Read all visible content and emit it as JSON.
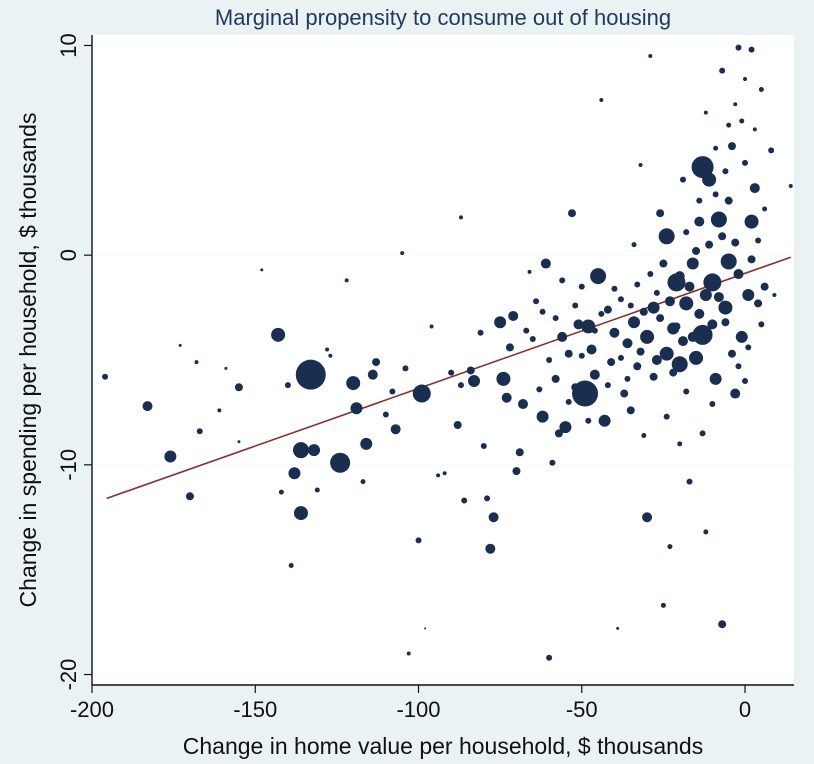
{
  "chart_data": {
    "type": "scatter",
    "title": "Marginal propensity to consume out of housing",
    "xlabel": "Change in home value per household, $ thousands",
    "ylabel": "Change in spending per household, $ thousands",
    "xlim": [
      -200,
      15
    ],
    "ylim": [
      -20.5,
      10.5
    ],
    "xticks": [
      -200,
      -150,
      -100,
      -50,
      0
    ],
    "yticks": [
      -20,
      -10,
      0,
      10
    ],
    "grid": true,
    "legend": "none",
    "colors": {
      "points": "#1a2f4f",
      "fit_line": "#8a2f2f",
      "background": "#eaf2f3",
      "plot_area": "#ffffff"
    },
    "fit_line": {
      "x": [
        -195.5,
        14
      ],
      "y": [
        -11.6,
        -0.1
      ]
    },
    "points": [
      {
        "x": -196,
        "y": -5.8,
        "s": 3
      },
      {
        "x": -183,
        "y": -7.2,
        "s": 5
      },
      {
        "x": -176,
        "y": -9.6,
        "s": 6
      },
      {
        "x": -173,
        "y": -4.3,
        "s": 1.5
      },
      {
        "x": -170,
        "y": -11.5,
        "s": 4
      },
      {
        "x": -168,
        "y": -5.1,
        "s": 2
      },
      {
        "x": -167,
        "y": -8.4,
        "s": 3
      },
      {
        "x": -161,
        "y": -7.4,
        "s": 2
      },
      {
        "x": -159,
        "y": -5.4,
        "s": 1.5
      },
      {
        "x": -155,
        "y": -6.3,
        "s": 4
      },
      {
        "x": -155,
        "y": -8.9,
        "s": 1.5
      },
      {
        "x": -148,
        "y": -0.7,
        "s": 1.5
      },
      {
        "x": -143,
        "y": -3.8,
        "s": 7
      },
      {
        "x": -142,
        "y": -11.3,
        "s": 2.5
      },
      {
        "x": -140,
        "y": -6.2,
        "s": 3
      },
      {
        "x": -139,
        "y": -14.8,
        "s": 2.5
      },
      {
        "x": -138,
        "y": -10.4,
        "s": 6
      },
      {
        "x": -136,
        "y": -9.3,
        "s": 8
      },
      {
        "x": -136,
        "y": -12.3,
        "s": 7
      },
      {
        "x": -133,
        "y": -5.7,
        "s": 15
      },
      {
        "x": -132,
        "y": -9.3,
        "s": 6
      },
      {
        "x": -131,
        "y": -11.2,
        "s": 2.5
      },
      {
        "x": -128,
        "y": -4.5,
        "s": 2
      },
      {
        "x": -127,
        "y": -4.8,
        "s": 2
      },
      {
        "x": -124,
        "y": -9.9,
        "s": 10
      },
      {
        "x": -122,
        "y": -1.2,
        "s": 2
      },
      {
        "x": -120,
        "y": -6.1,
        "s": 7
      },
      {
        "x": -119,
        "y": -7.3,
        "s": 6
      },
      {
        "x": -117,
        "y": -10.8,
        "s": 2.5
      },
      {
        "x": -116,
        "y": -9.0,
        "s": 6
      },
      {
        "x": -114,
        "y": -5.7,
        "s": 5
      },
      {
        "x": -113,
        "y": -5.1,
        "s": 4
      },
      {
        "x": -110,
        "y": -7.6,
        "s": 3
      },
      {
        "x": -108,
        "y": -6.5,
        "s": 3
      },
      {
        "x": -107,
        "y": -8.3,
        "s": 5
      },
      {
        "x": -105,
        "y": 0.1,
        "s": 2
      },
      {
        "x": -104,
        "y": -5.4,
        "s": 3
      },
      {
        "x": -103,
        "y": -19.0,
        "s": 2
      },
      {
        "x": -100,
        "y": -13.6,
        "s": 3
      },
      {
        "x": -99,
        "y": -6.6,
        "s": 9
      },
      {
        "x": -98,
        "y": -17.8,
        "s": 1
      },
      {
        "x": -96,
        "y": -3.4,
        "s": 2
      },
      {
        "x": -94,
        "y": -10.5,
        "s": 2
      },
      {
        "x": -92,
        "y": -10.4,
        "s": 2
      },
      {
        "x": -90,
        "y": -5.6,
        "s": 3
      },
      {
        "x": -88,
        "y": -8.1,
        "s": 4
      },
      {
        "x": -87,
        "y": -6.2,
        "s": 3
      },
      {
        "x": -87,
        "y": 1.8,
        "s": 2
      },
      {
        "x": -86,
        "y": -11.7,
        "s": 3
      },
      {
        "x": -84,
        "y": -5.5,
        "s": 4
      },
      {
        "x": -83,
        "y": -6.0,
        "s": 6
      },
      {
        "x": -81,
        "y": -3.7,
        "s": 3
      },
      {
        "x": -80,
        "y": -9.1,
        "s": 3
      },
      {
        "x": -79,
        "y": -11.6,
        "s": 3
      },
      {
        "x": -78,
        "y": -14.0,
        "s": 5
      },
      {
        "x": -77,
        "y": -12.5,
        "s": 5
      },
      {
        "x": -75,
        "y": -3.2,
        "s": 6
      },
      {
        "x": -74,
        "y": -5.9,
        "s": 7
      },
      {
        "x": -73,
        "y": -6.8,
        "s": 5
      },
      {
        "x": -72,
        "y": -4.4,
        "s": 4
      },
      {
        "x": -71,
        "y": -2.9,
        "s": 5
      },
      {
        "x": -70,
        "y": -10.3,
        "s": 4
      },
      {
        "x": -69,
        "y": -9.4,
        "s": 4
      },
      {
        "x": -68,
        "y": -7.1,
        "s": 5
      },
      {
        "x": -67,
        "y": -3.6,
        "s": 3
      },
      {
        "x": -66,
        "y": -0.8,
        "s": 2
      },
      {
        "x": -64,
        "y": -2.2,
        "s": 3
      },
      {
        "x": -63,
        "y": -6.4,
        "s": 3
      },
      {
        "x": -62,
        "y": -7.7,
        "s": 6
      },
      {
        "x": -61,
        "y": -0.4,
        "s": 5
      },
      {
        "x": -60,
        "y": -19.2,
        "s": 3
      },
      {
        "x": -59,
        "y": -9.9,
        "s": 3
      },
      {
        "x": -58,
        "y": -5.9,
        "s": 4
      },
      {
        "x": -57,
        "y": -8.5,
        "s": 4
      },
      {
        "x": -56,
        "y": -3.9,
        "s": 5
      },
      {
        "x": -55,
        "y": -8.2,
        "s": 6
      },
      {
        "x": -54,
        "y": -4.7,
        "s": 4
      },
      {
        "x": -53,
        "y": 2.0,
        "s": 4
      },
      {
        "x": -52,
        "y": -6.3,
        "s": 4
      },
      {
        "x": -51,
        "y": -3.3,
        "s": 5
      },
      {
        "x": -50,
        "y": -1.5,
        "s": 3
      },
      {
        "x": -49,
        "y": -6.6,
        "s": 13
      },
      {
        "x": -48,
        "y": -3.4,
        "s": 7
      },
      {
        "x": -47,
        "y": -4.5,
        "s": 5
      },
      {
        "x": -46,
        "y": -5.7,
        "s": 5
      },
      {
        "x": -45,
        "y": -1.0,
        "s": 8
      },
      {
        "x": -44,
        "y": 7.4,
        "s": 2
      },
      {
        "x": -43,
        "y": -7.9,
        "s": 6
      },
      {
        "x": -42,
        "y": -2.6,
        "s": 4
      },
      {
        "x": -41,
        "y": -5.1,
        "s": 4
      },
      {
        "x": -40,
        "y": -3.7,
        "s": 5
      },
      {
        "x": -39,
        "y": -17.8,
        "s": 1.5
      },
      {
        "x": -38,
        "y": -2.1,
        "s": 3
      },
      {
        "x": -37,
        "y": -6.6,
        "s": 4
      },
      {
        "x": -36,
        "y": -4.2,
        "s": 5
      },
      {
        "x": -35,
        "y": -7.4,
        "s": 4
      },
      {
        "x": -34,
        "y": -3.2,
        "s": 6
      },
      {
        "x": -33,
        "y": -5.3,
        "s": 4
      },
      {
        "x": -32,
        "y": 4.3,
        "s": 2
      },
      {
        "x": -31,
        "y": -8.6,
        "s": 2.5
      },
      {
        "x": -30,
        "y": -12.5,
        "s": 5
      },
      {
        "x": -30,
        "y": -3.9,
        "s": 7
      },
      {
        "x": -29,
        "y": 9.5,
        "s": 2
      },
      {
        "x": -28,
        "y": -2.5,
        "s": 6
      },
      {
        "x": -27,
        "y": -5.0,
        "s": 5
      },
      {
        "x": -26,
        "y": 2.0,
        "s": 4
      },
      {
        "x": -25,
        "y": -16.7,
        "s": 2.5
      },
      {
        "x": -24,
        "y": 0.9,
        "s": 8
      },
      {
        "x": -24,
        "y": -4.7,
        "s": 7
      },
      {
        "x": -23,
        "y": -13.9,
        "s": 2.5
      },
      {
        "x": -22,
        "y": -3.5,
        "s": 6
      },
      {
        "x": -21,
        "y": -1.3,
        "s": 9
      },
      {
        "x": -20,
        "y": -5.2,
        "s": 8
      },
      {
        "x": -19,
        "y": 3.6,
        "s": 3
      },
      {
        "x": -18,
        "y": -2.3,
        "s": 7
      },
      {
        "x": -17,
        "y": -10.8,
        "s": 3
      },
      {
        "x": -16,
        "y": -0.4,
        "s": 6
      },
      {
        "x": -15,
        "y": -4.9,
        "s": 7
      },
      {
        "x": -14,
        "y": 1.6,
        "s": 5
      },
      {
        "x": -13,
        "y": 4.2,
        "s": 11
      },
      {
        "x": -13,
        "y": -3.8,
        "s": 10
      },
      {
        "x": -12,
        "y": -13.2,
        "s": 2.5
      },
      {
        "x": -11,
        "y": 3.6,
        "s": 7
      },
      {
        "x": -10,
        "y": -1.3,
        "s": 9
      },
      {
        "x": -9,
        "y": -5.9,
        "s": 6
      },
      {
        "x": -8,
        "y": 1.7,
        "s": 8
      },
      {
        "x": -7,
        "y": 8.8,
        "s": 3
      },
      {
        "x": -7,
        "y": -17.6,
        "s": 4
      },
      {
        "x": -6,
        "y": -2.5,
        "s": 7
      },
      {
        "x": -5,
        "y": -0.3,
        "s": 8
      },
      {
        "x": -4,
        "y": 5.2,
        "s": 4
      },
      {
        "x": -3,
        "y": -6.6,
        "s": 5
      },
      {
        "x": -2,
        "y": 9.9,
        "s": 3
      },
      {
        "x": -1,
        "y": -3.9,
        "s": 6
      },
      {
        "x": 0,
        "y": 4.4,
        "s": 3
      },
      {
        "x": 1,
        "y": -1.9,
        "s": 6
      },
      {
        "x": 2,
        "y": 9.8,
        "s": 3
      },
      {
        "x": 2,
        "y": 1.6,
        "s": 7
      },
      {
        "x": 3,
        "y": 3.2,
        "s": 5
      },
      {
        "x": 4,
        "y": -2.3,
        "s": 4
      },
      {
        "x": 5,
        "y": 7.9,
        "s": 2.5
      },
      {
        "x": 6,
        "y": -1.5,
        "s": 4
      },
      {
        "x": 8,
        "y": 5.0,
        "s": 3
      },
      {
        "x": 9,
        "y": -1.9,
        "s": 2
      },
      {
        "x": 14,
        "y": 3.3,
        "s": 2
      },
      {
        "x": -2,
        "y": -0.9,
        "s": 5
      },
      {
        "x": -3,
        "y": 0.6,
        "s": 4
      },
      {
        "x": -4,
        "y": -4.7,
        "s": 4
      },
      {
        "x": -5,
        "y": 2.6,
        "s": 4
      },
      {
        "x": -6,
        "y": -3.2,
        "s": 4
      },
      {
        "x": -7,
        "y": 0.9,
        "s": 4
      },
      {
        "x": -8,
        "y": -2.0,
        "s": 5
      },
      {
        "x": -9,
        "y": 2.9,
        "s": 3
      },
      {
        "x": -10,
        "y": -3.3,
        "s": 5
      },
      {
        "x": -11,
        "y": 0.5,
        "s": 4
      },
      {
        "x": -12,
        "y": -1.9,
        "s": 6
      },
      {
        "x": -14,
        "y": -2.8,
        "s": 5
      },
      {
        "x": -15,
        "y": 0.2,
        "s": 4
      },
      {
        "x": -16,
        "y": -3.9,
        "s": 5
      },
      {
        "x": -17,
        "y": -1.5,
        "s": 5
      },
      {
        "x": -18,
        "y": 1.1,
        "s": 3
      },
      {
        "x": -19,
        "y": -4.1,
        "s": 5
      },
      {
        "x": -20,
        "y": -1.0,
        "s": 5
      },
      {
        "x": -21,
        "y": -3.4,
        "s": 4
      },
      {
        "x": -22,
        "y": -5.6,
        "s": 4
      },
      {
        "x": -23,
        "y": -2.2,
        "s": 5
      },
      {
        "x": -25,
        "y": -0.4,
        "s": 4
      },
      {
        "x": -26,
        "y": -3.0,
        "s": 4
      },
      {
        "x": -27,
        "y": -1.8,
        "s": 3
      },
      {
        "x": -28,
        "y": -5.8,
        "s": 4
      },
      {
        "x": -29,
        "y": -0.9,
        "s": 3
      },
      {
        "x": -31,
        "y": -2.7,
        "s": 4
      },
      {
        "x": -32,
        "y": -4.6,
        "s": 4
      },
      {
        "x": -33,
        "y": -1.4,
        "s": 3
      },
      {
        "x": -34,
        "y": 0.5,
        "s": 2.5
      },
      {
        "x": -35,
        "y": -2.4,
        "s": 3
      },
      {
        "x": -36,
        "y": -5.9,
        "s": 3
      },
      {
        "x": -38,
        "y": -4.9,
        "s": 3
      },
      {
        "x": -40,
        "y": -1.6,
        "s": 3
      },
      {
        "x": -42,
        "y": -6.2,
        "s": 3
      },
      {
        "x": -44,
        "y": -2.8,
        "s": 3
      },
      {
        "x": -46,
        "y": -3.6,
        "s": 3
      },
      {
        "x": -48,
        "y": -7.9,
        "s": 3
      },
      {
        "x": -50,
        "y": -4.8,
        "s": 3
      },
      {
        "x": -52,
        "y": -2.4,
        "s": 3
      },
      {
        "x": -54,
        "y": -7.0,
        "s": 3
      },
      {
        "x": -56,
        "y": -1.2,
        "s": 3
      },
      {
        "x": -58,
        "y": -3.0,
        "s": 3
      },
      {
        "x": -60,
        "y": -5.0,
        "s": 3
      },
      {
        "x": -62,
        "y": -2.7,
        "s": 3
      },
      {
        "x": -65,
        "y": -4.0,
        "s": 3
      },
      {
        "x": -1,
        "y": 6.4,
        "s": 2.5
      },
      {
        "x": -3,
        "y": 7.2,
        "s": 2
      },
      {
        "x": -5,
        "y": 6.2,
        "s": 2.5
      },
      {
        "x": -9,
        "y": 5.1,
        "s": 2.5
      },
      {
        "x": -12,
        "y": 6.8,
        "s": 2
      },
      {
        "x": 0,
        "y": 8.4,
        "s": 2
      },
      {
        "x": 3,
        "y": 6.0,
        "s": 2
      },
      {
        "x": 1,
        "y": -4.4,
        "s": 3
      },
      {
        "x": 0,
        "y": -6.0,
        "s": 3
      },
      {
        "x": -2,
        "y": -5.3,
        "s": 3
      },
      {
        "x": 4,
        "y": 0.7,
        "s": 3
      },
      {
        "x": 6,
        "y": 2.2,
        "s": 2.5
      },
      {
        "x": 5,
        "y": -3.3,
        "s": 3
      },
      {
        "x": 2,
        "y": -0.2,
        "s": 4
      },
      {
        "x": -6,
        "y": 4.0,
        "s": 3
      },
      {
        "x": -14,
        "y": 2.6,
        "s": 3
      },
      {
        "x": -18,
        "y": -6.5,
        "s": 3
      },
      {
        "x": -13,
        "y": -8.5,
        "s": 3
      },
      {
        "x": -10,
        "y": -7.1,
        "s": 3
      },
      {
        "x": -24,
        "y": -7.7,
        "s": 3
      },
      {
        "x": -20,
        "y": -9.0,
        "s": 2.5
      }
    ]
  }
}
